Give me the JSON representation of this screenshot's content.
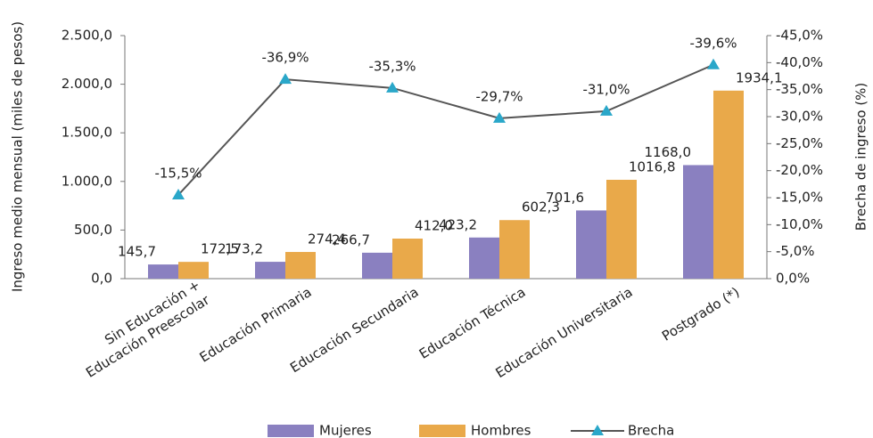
{
  "chart_data": {
    "type": "bar-line",
    "y_label": "Ingreso medio mensual (miles de pesos)",
    "y2_label": "Brecha de ingreso (%)",
    "categories": [
      "Sin Educación +\nEducación Preescolar",
      "Educación Primaria",
      "Educación Secundaria",
      "Educación Técnica",
      "Educación Universitaria",
      "Postgrado (*)"
    ],
    "series": [
      {
        "name": "Mujeres",
        "color": "#8a80c0",
        "type": "bar",
        "values": [
          145.7,
          173.2,
          266.7,
          423.2,
          701.6,
          1168.0
        ],
        "value_labels": [
          "145,7",
          "173,2",
          "266,7",
          "423,2",
          "701,6",
          "1168,0"
        ]
      },
      {
        "name": "Hombres",
        "color": "#e9a94a",
        "type": "bar",
        "values": [
          172.5,
          274.4,
          412.0,
          602.3,
          1016.8,
          1934.1
        ],
        "value_labels": [
          "172,5",
          "274,4",
          "412,0",
          "602,3",
          "1016,8",
          "1934,1"
        ]
      },
      {
        "name": "Brecha",
        "color": "#555555",
        "marker_color": "#2aa7c9",
        "type": "line",
        "axis": "y2",
        "values": [
          -15.5,
          -36.9,
          -35.3,
          -29.7,
          -31.0,
          -39.6
        ],
        "value_labels": [
          "-15,5%",
          "-36,9%",
          "-35,3%",
          "-29,7%",
          "-31,0%",
          "-39,6%"
        ]
      }
    ],
    "ylim": [
      0,
      2500
    ],
    "yticks": [
      {
        "value": 0,
        "label": "0,0"
      },
      {
        "value": 500,
        "label": "500,0"
      },
      {
        "value": 1000,
        "label": "1.000,0"
      },
      {
        "value": 1500,
        "label": "1.500,0"
      },
      {
        "value": 2000,
        "label": "2.000,0"
      },
      {
        "value": 2500,
        "label": "2.500,0"
      }
    ],
    "y2lim": [
      0,
      -45
    ],
    "y2ticks": [
      {
        "value": 0,
        "label": "0,0%"
      },
      {
        "value": -5,
        "label": "-5,0%"
      },
      {
        "value": -10,
        "label": "-10,0%"
      },
      {
        "value": -15,
        "label": "-15,0%"
      },
      {
        "value": -20,
        "label": "-20,0%"
      },
      {
        "value": -25,
        "label": "-25,0%"
      },
      {
        "value": -30,
        "label": "-30,0%"
      },
      {
        "value": -35,
        "label": "-35,0%"
      },
      {
        "value": -40,
        "label": "-40,0%"
      },
      {
        "value": -45,
        "label": "-45,0%"
      }
    ],
    "legend": "bottom"
  }
}
